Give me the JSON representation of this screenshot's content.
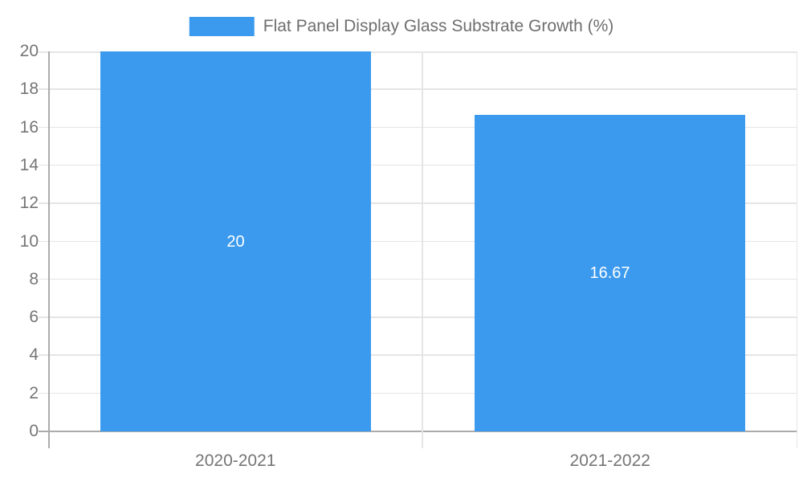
{
  "chart_data": {
    "type": "bar",
    "title": "Flat Panel Display Glass Substrate Growth (%)",
    "categories": [
      "2020-2021",
      "2021-2022"
    ],
    "values": [
      20,
      16.67
    ],
    "bar_labels": [
      "20",
      "16.67"
    ],
    "xlabel": "",
    "ylabel": "",
    "ylim": [
      0,
      20
    ],
    "yticks": [
      0,
      2,
      4,
      6,
      8,
      10,
      12,
      14,
      16,
      18,
      20
    ],
    "grid": true,
    "legend_position": "top-center"
  },
  "colors": {
    "bar": "#3b9aee",
    "axis": "#ababab",
    "grid": "#e5e5e5",
    "tick_label": "#757575",
    "legend_text": "#6e6e6e",
    "bar_label": "#ffffff",
    "background": "#ffffff"
  }
}
